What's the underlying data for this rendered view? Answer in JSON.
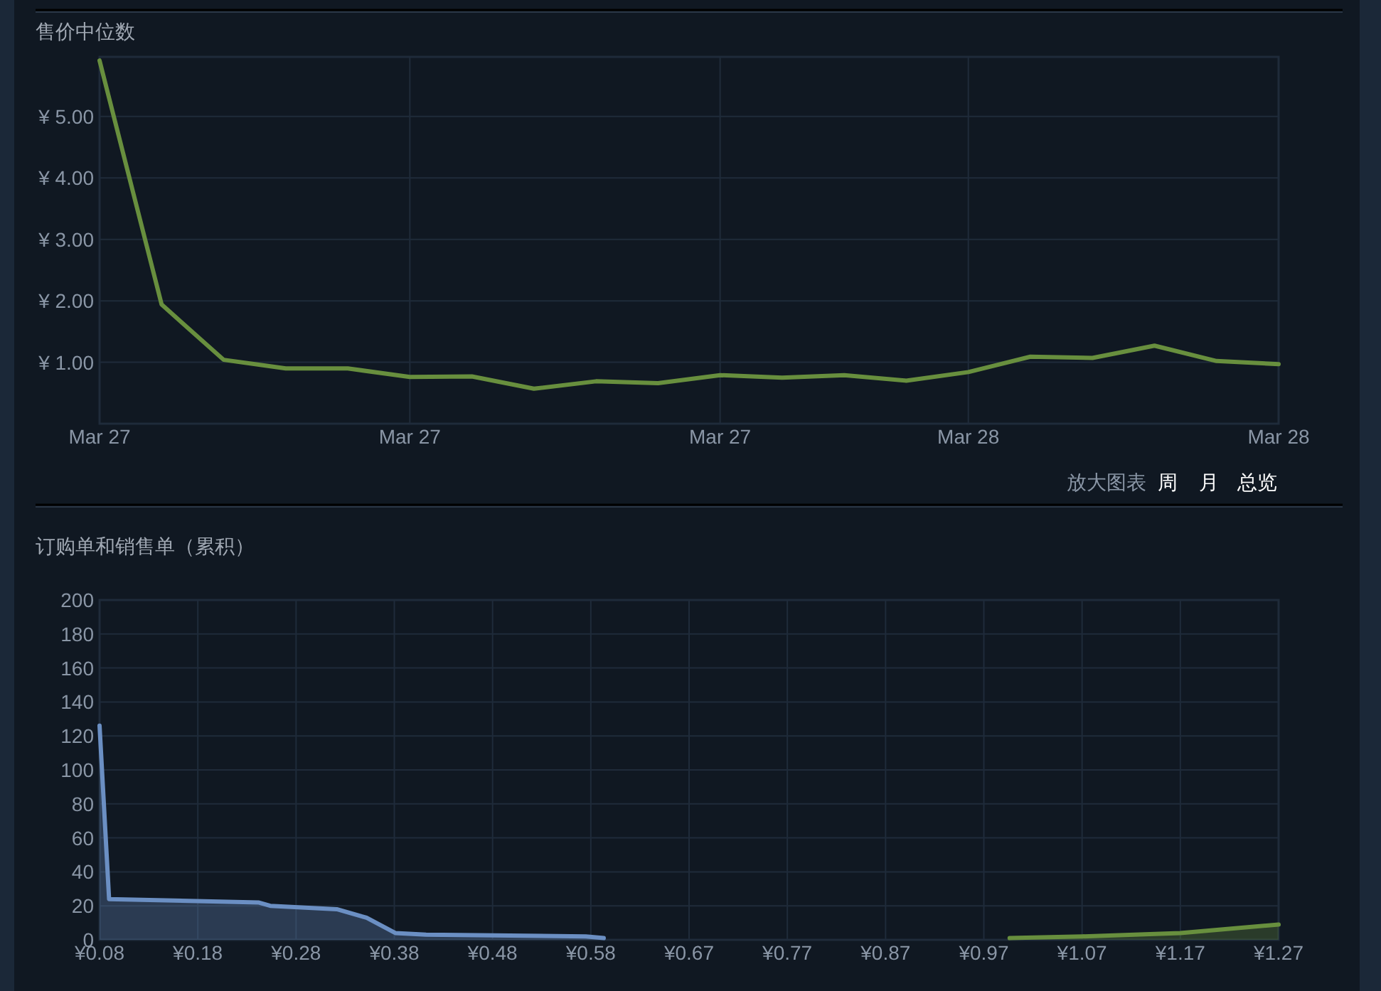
{
  "chart_data": [
    {
      "type": "line",
      "title": "售价中位数",
      "categories": [
        "Mar 27",
        null,
        null,
        null,
        null,
        "Mar 27",
        null,
        null,
        null,
        null,
        "Mar 27",
        null,
        null,
        null,
        "Mar 28",
        null,
        null,
        null,
        null,
        "Mar 28"
      ],
      "series": [
        {
          "color": "#688f3e",
          "values": [
            5.91,
            1.94,
            1.04,
            0.9,
            0.9,
            0.76,
            0.77,
            0.57,
            0.69,
            0.66,
            0.79,
            0.75,
            0.79,
            0.7,
            0.84,
            1.09,
            1.07,
            1.27,
            1.02,
            0.97
          ]
        }
      ],
      "ylim": [
        0,
        5.97
      ],
      "yticks": [
        {
          "value": 1,
          "label": "¥ 1.00"
        },
        {
          "value": 2,
          "label": "¥ 2.00"
        },
        {
          "value": 3,
          "label": "¥ 3.00"
        },
        {
          "value": 4,
          "label": "¥ 4.00"
        },
        {
          "value": 5,
          "label": "¥ 5.00"
        }
      ],
      "grid": true,
      "annotations": [
        "放大图表",
        "周",
        "月",
        "总览"
      ]
    },
    {
      "type": "area",
      "title": "订购单和销售单（累积）",
      "series": [
        {
          "color": "#6b8fc3",
          "x": [
            0.08,
            0.0896,
            0.24,
            0.252,
            0.319,
            0.349,
            0.378,
            0.409,
            0.57,
            0.588
          ],
          "values": [
            126,
            24,
            22,
            20,
            18,
            13,
            4,
            3,
            2,
            1
          ]
        },
        {
          "color": "#688f3e",
          "x": [
            0.997,
            1.07,
            1.169,
            1.268
          ],
          "values": [
            1,
            2,
            4,
            9
          ]
        }
      ],
      "xlim": [
        0.08,
        1.268
      ],
      "xticks": [
        {
          "value": 0.08,
          "label": "¥0.08"
        },
        {
          "value": 0.179,
          "label": "¥0.18"
        },
        {
          "value": 0.278,
          "label": "¥0.28"
        },
        {
          "value": 0.377,
          "label": "¥0.38"
        },
        {
          "value": 0.476,
          "label": "¥0.48"
        },
        {
          "value": 0.575,
          "label": "¥0.58"
        },
        {
          "value": 0.674,
          "label": "¥0.67"
        },
        {
          "value": 0.773,
          "label": "¥0.77"
        },
        {
          "value": 0.872,
          "label": "¥0.87"
        },
        {
          "value": 0.971,
          "label": "¥0.97"
        },
        {
          "value": 1.07,
          "label": "¥1.07"
        },
        {
          "value": 1.169,
          "label": "¥1.17"
        },
        {
          "value": 1.268,
          "label": "¥1.27"
        }
      ],
      "ylim": [
        0,
        200
      ],
      "yticks": [
        0,
        20,
        40,
        60,
        80,
        100,
        120,
        140,
        160,
        180,
        200
      ],
      "grid": true
    }
  ]
}
